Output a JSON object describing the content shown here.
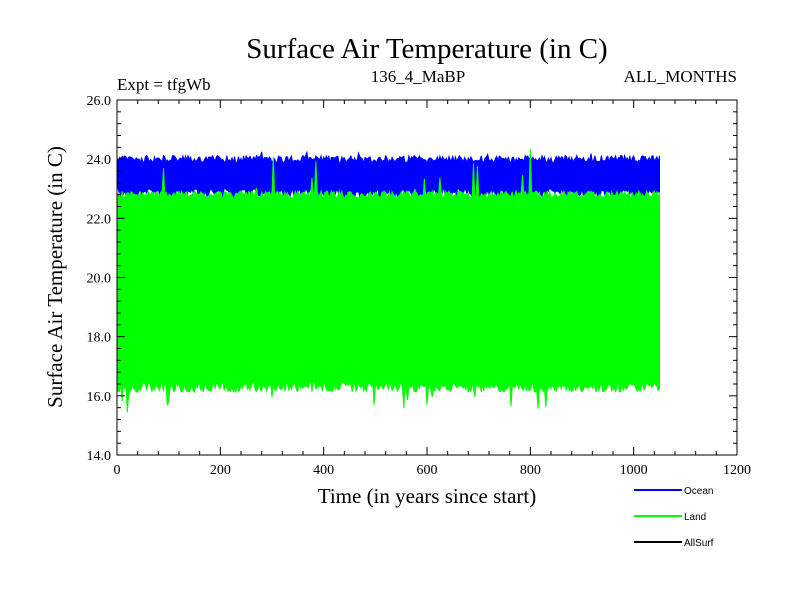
{
  "chart_data": {
    "type": "area",
    "title": "Surface Air Temperature (in C)",
    "subtitle_left": "Expt = tfgWb",
    "subtitle_center": "136_4_MaBP",
    "subtitle_right": "ALL_MONTHS",
    "xlabel": "Time (in years since start)",
    "ylabel": "Surface Air Temperature (in C)",
    "xlim": [
      0,
      1200
    ],
    "ylim": [
      14.0,
      26.0
    ],
    "x_ticks": [
      0,
      200,
      400,
      600,
      800,
      1000,
      1200
    ],
    "x_tick_labels": [
      "0",
      "200",
      "400",
      "600",
      "800",
      "1000",
      "1200"
    ],
    "y_ticks": [
      14.0,
      16.0,
      18.0,
      20.0,
      22.0,
      24.0,
      26.0
    ],
    "y_tick_labels": [
      "14.0",
      "16.0",
      "18.0",
      "20.0",
      "22.0",
      "24.0",
      "26.0"
    ],
    "x_range": [
      0,
      1050
    ],
    "series": [
      {
        "name": "Ocean",
        "color": "#0000ff",
        "range_low": [
          22.7,
          23.0
        ],
        "range_high": [
          23.8,
          24.2
        ],
        "band_low": 22.85,
        "band_high": 24.0
      },
      {
        "name": "Land",
        "color": "#00ff00",
        "range_low": [
          15.6,
          16.8
        ],
        "range_high": [
          22.6,
          24.4
        ],
        "band_low": 16.3,
        "band_high": 22.8
      },
      {
        "name": "AllSurf",
        "color": "#000000",
        "visible_in_plot": false
      }
    ]
  },
  "legend": {
    "items": [
      {
        "label": "Ocean",
        "color": "#0000ff"
      },
      {
        "label": "Land",
        "color": "#00ff00"
      },
      {
        "label": "AllSurf",
        "color": "#000000"
      }
    ]
  }
}
